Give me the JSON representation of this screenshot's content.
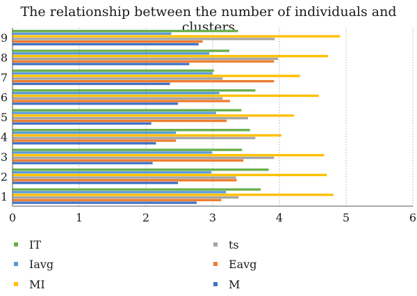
{
  "chart_data": {
    "type": "bar",
    "orientation": "horizontal",
    "title": "The relationship between the number of individuals and clusters",
    "xlabel": "",
    "ylabel": "",
    "xlim": [
      0,
      6
    ],
    "x_ticks": [
      "0",
      "1",
      "2",
      "3",
      "4",
      "5",
      "6"
    ],
    "categories": [
      "1",
      "2",
      "3",
      "4",
      "5",
      "6",
      "7",
      "8",
      "9"
    ],
    "grid": "vertical dotted",
    "legend_position": "bottom",
    "series": [
      {
        "name": "IT",
        "color": "#6ab04c",
        "values": [
          3.72,
          3.84,
          3.44,
          3.56,
          3.43,
          3.64,
          3.02,
          3.25,
          3.38
        ]
      },
      {
        "name": "Iavg",
        "color": "#5b9bd5",
        "values": [
          3.2,
          2.98,
          2.99,
          2.45,
          3.05,
          3.1,
          3.0,
          2.95,
          2.38
        ]
      },
      {
        "name": "MI",
        "color": "#ffc000",
        "values": [
          4.81,
          4.71,
          4.67,
          4.03,
          4.22,
          4.59,
          4.31,
          4.73,
          4.91
        ]
      },
      {
        "name": "ts",
        "color": "#a5a5a5",
        "values": [
          3.39,
          3.35,
          3.92,
          3.64,
          3.53,
          3.15,
          3.15,
          3.98,
          3.93
        ]
      },
      {
        "name": "Eavg",
        "color": "#ed7d31",
        "values": [
          3.13,
          3.36,
          3.46,
          2.45,
          3.21,
          3.26,
          3.92,
          3.92,
          2.85
        ]
      },
      {
        "name": "M",
        "color": "#4472c4",
        "values": [
          2.76,
          2.48,
          2.1,
          2.15,
          2.08,
          2.48,
          2.36,
          2.65,
          2.79
        ]
      }
    ]
  }
}
